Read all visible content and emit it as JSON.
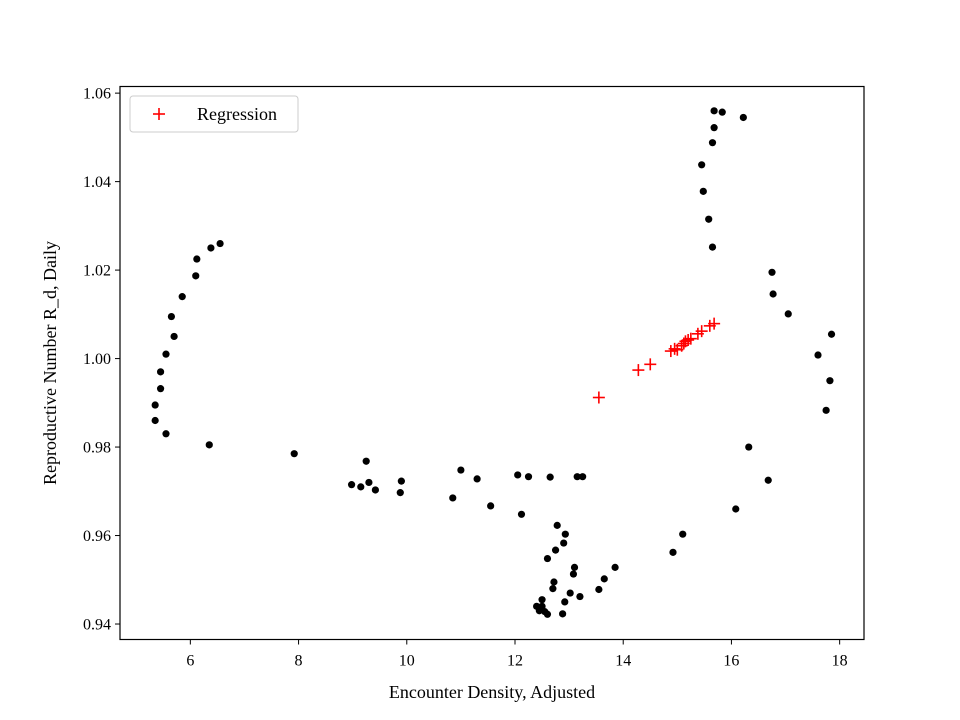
{
  "chart_data": {
    "type": "scatter",
    "xlabel": "Encounter Density, Adjusted",
    "ylabel": "Reproductive Number R_d, Daily",
    "xlim": [
      4.7,
      18.45
    ],
    "ylim": [
      0.9365,
      1.0615
    ],
    "xticks": [
      6,
      8,
      10,
      12,
      14,
      16,
      18
    ],
    "yticks": [
      0.94,
      0.96,
      0.98,
      1.0,
      1.02,
      1.04,
      1.06
    ],
    "ytick_labels": [
      "0.94",
      "0.96",
      "0.98",
      "1.00",
      "1.02",
      "1.04",
      "1.06"
    ],
    "grid": false,
    "legend": {
      "placement": "top-left",
      "entries": [
        "Regression"
      ]
    },
    "colors": {
      "observed": "#000000",
      "regression": "#ff0000"
    },
    "series": [
      {
        "marker": "circle",
        "points": [
          [
            5.35,
            0.9895
          ],
          [
            5.35,
            0.986
          ],
          [
            5.45,
            0.9932
          ],
          [
            5.45,
            0.997
          ],
          [
            5.55,
            0.983
          ],
          [
            5.55,
            1.001
          ],
          [
            5.65,
            1.0095
          ],
          [
            5.7,
            1.005
          ],
          [
            5.85,
            1.014
          ],
          [
            6.1,
            1.0187
          ],
          [
            6.12,
            1.0225
          ],
          [
            6.38,
            1.025
          ],
          [
            6.55,
            1.026
          ],
          [
            6.35,
            0.9805
          ],
          [
            7.92,
            0.9785
          ],
          [
            8.98,
            0.9715
          ],
          [
            9.15,
            0.971
          ],
          [
            9.25,
            0.9768
          ],
          [
            9.3,
            0.972
          ],
          [
            9.42,
            0.9703
          ],
          [
            9.88,
            0.9697
          ],
          [
            9.9,
            0.9723
          ],
          [
            10.85,
            0.9685
          ],
          [
            11.0,
            0.9748
          ],
          [
            11.3,
            0.9728
          ],
          [
            11.55,
            0.9667
          ],
          [
            12.05,
            0.9737
          ],
          [
            12.12,
            0.9648
          ],
          [
            12.25,
            0.9733
          ],
          [
            12.65,
            0.9732
          ],
          [
            13.15,
            0.9733
          ],
          [
            13.25,
            0.9733
          ],
          [
            12.78,
            0.9623
          ],
          [
            12.9,
            0.9583
          ],
          [
            12.93,
            0.9603
          ],
          [
            12.6,
            0.9548
          ],
          [
            12.75,
            0.9567
          ],
          [
            12.72,
            0.9495
          ],
          [
            12.7,
            0.948
          ],
          [
            12.4,
            0.944
          ],
          [
            12.45,
            0.943
          ],
          [
            12.5,
            0.9455
          ],
          [
            12.5,
            0.944
          ],
          [
            12.55,
            0.9428
          ],
          [
            12.6,
            0.9422
          ],
          [
            12.88,
            0.9423
          ],
          [
            12.92,
            0.945
          ],
          [
            13.02,
            0.947
          ],
          [
            13.08,
            0.9513
          ],
          [
            13.1,
            0.9528
          ],
          [
            13.2,
            0.9462
          ],
          [
            13.55,
            0.9478
          ],
          [
            13.65,
            0.9502
          ],
          [
            13.85,
            0.9528
          ],
          [
            14.92,
            0.9562
          ],
          [
            15.1,
            0.9603
          ],
          [
            16.08,
            0.966
          ],
          [
            16.32,
            0.98
          ],
          [
            16.68,
            0.9725
          ],
          [
            15.45,
            1.0438
          ],
          [
            15.48,
            1.0378
          ],
          [
            15.58,
            1.0315
          ],
          [
            15.65,
            1.0252
          ],
          [
            15.65,
            1.0488
          ],
          [
            15.68,
            1.0522
          ],
          [
            15.68,
            1.056
          ],
          [
            15.83,
            1.0557
          ],
          [
            16.22,
            1.0545
          ],
          [
            16.75,
            1.0195
          ],
          [
            16.77,
            1.0146
          ],
          [
            17.05,
            1.0101
          ],
          [
            17.6,
            1.0008
          ],
          [
            17.75,
            0.9883
          ],
          [
            17.82,
            0.995
          ],
          [
            17.85,
            1.0055
          ]
        ]
      },
      {
        "name": "Regression",
        "marker": "plus",
        "points": [
          [
            13.55,
            0.9912
          ],
          [
            14.28,
            0.9974
          ],
          [
            14.5,
            0.9987
          ],
          [
            14.88,
            1.0017
          ],
          [
            14.95,
            1.0022
          ],
          [
            15.0,
            1.002
          ],
          [
            15.08,
            1.0029
          ],
          [
            15.12,
            1.0034
          ],
          [
            15.15,
            1.0039
          ],
          [
            15.2,
            1.0042
          ],
          [
            15.25,
            1.0045
          ],
          [
            15.38,
            1.0056
          ],
          [
            15.45,
            1.0062
          ],
          [
            15.6,
            1.0074
          ],
          [
            15.68,
            1.0079
          ]
        ]
      }
    ]
  }
}
